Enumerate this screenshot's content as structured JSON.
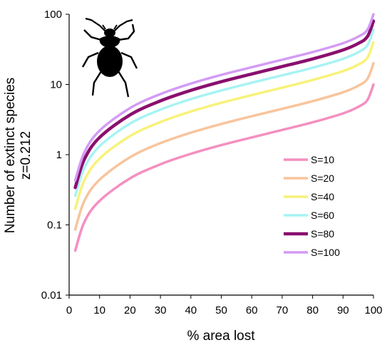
{
  "chart_data": {
    "type": "line",
    "ylabel_line1": "Number of extinct species",
    "ylabel_line2": "z=0.212",
    "xlabel": "% area lost",
    "y_scale": "log",
    "xlim": [
      0,
      100
    ],
    "ylim": [
      0.01,
      100
    ],
    "x_ticks": [
      "0",
      "10",
      "20",
      "30",
      "40",
      "50",
      "60",
      "70",
      "80",
      "90",
      "100"
    ],
    "y_ticks": [
      "0.01",
      "0.1",
      "1",
      "10",
      "100"
    ],
    "grid": false,
    "legend_position": "bottom-right",
    "z": 0.212,
    "x": [
      2,
      5,
      10,
      20,
      30,
      40,
      50,
      60,
      70,
      80,
      90,
      95,
      98,
      100
    ],
    "series": [
      {
        "name": "S=10",
        "color": "#f48fc0",
        "stroke_width": "normal",
        "values": [
          0.043,
          0.11,
          0.22,
          0.46,
          0.73,
          1.03,
          1.37,
          1.76,
          2.25,
          2.89,
          3.87,
          4.8,
          6.0,
          10.0
        ]
      },
      {
        "name": "S=20",
        "color": "#f8c49c",
        "stroke_width": "normal",
        "values": [
          0.086,
          0.22,
          0.44,
          0.92,
          1.46,
          2.06,
          2.74,
          3.53,
          4.5,
          5.78,
          7.74,
          9.6,
          12.0,
          20.0
        ]
      },
      {
        "name": "S=40",
        "color": "#f7f27a",
        "stroke_width": "normal",
        "values": [
          0.17,
          0.43,
          0.88,
          1.84,
          2.92,
          4.12,
          5.48,
          7.06,
          9.0,
          11.6,
          15.5,
          19.2,
          24.0,
          40.0
        ]
      },
      {
        "name": "S=60",
        "color": "#a8f3f3",
        "stroke_width": "normal",
        "values": [
          0.26,
          0.65,
          1.32,
          2.77,
          4.38,
          6.18,
          8.22,
          10.6,
          13.5,
          17.3,
          23.2,
          28.8,
          36.0,
          60.0
        ]
      },
      {
        "name": "S=80",
        "color": "#8a0f6e",
        "stroke_width": "thick",
        "values": [
          0.34,
          0.86,
          1.76,
          3.69,
          5.84,
          8.24,
          10.96,
          14.1,
          18.0,
          23.1,
          31.0,
          38.4,
          48.0,
          80.0
        ]
      },
      {
        "name": "S=100",
        "color": "#d39bf5",
        "stroke_width": "normal",
        "values": [
          0.43,
          1.08,
          2.2,
          4.61,
          7.3,
          10.3,
          13.7,
          17.6,
          22.5,
          28.9,
          38.7,
          48.0,
          60.0,
          100.0
        ]
      }
    ],
    "icon": "beetle-silhouette-icon"
  }
}
